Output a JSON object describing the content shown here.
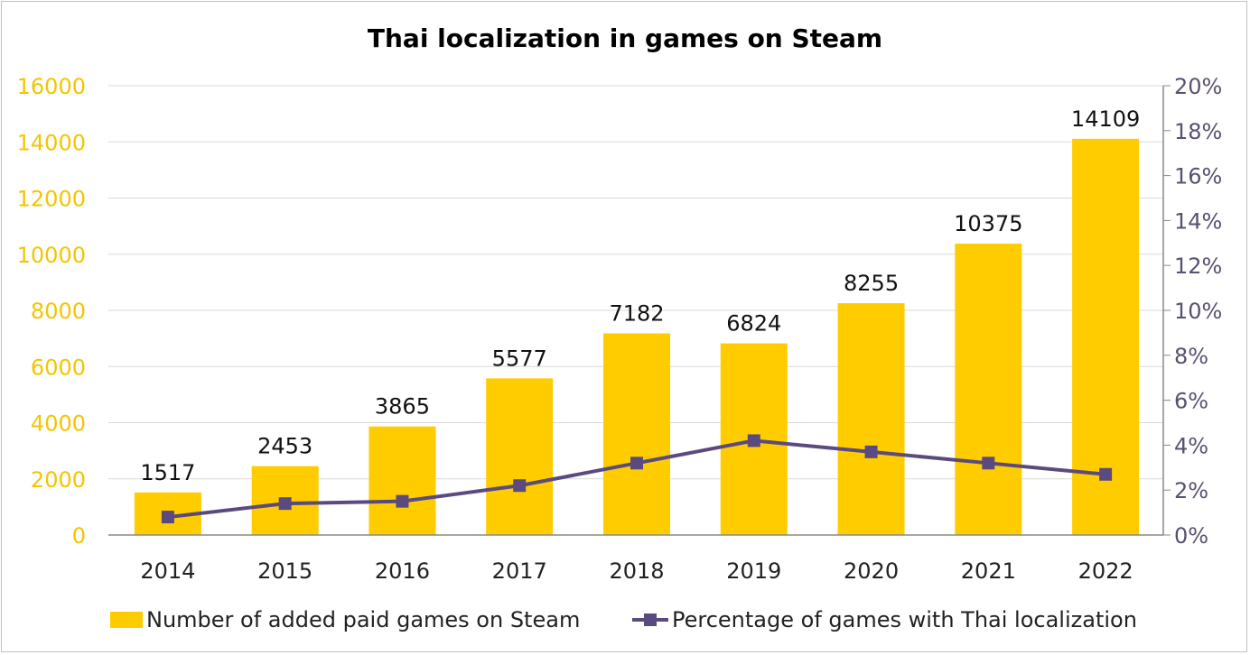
{
  "chart_data": {
    "type": "bar+line",
    "title": "Thai localization in games on Steam",
    "categories": [
      "2014",
      "2015",
      "2016",
      "2017",
      "2018",
      "2019",
      "2020",
      "2021",
      "2022"
    ],
    "series": [
      {
        "name": "Number of added paid games on Steam",
        "type": "bar",
        "axis": "left",
        "values": [
          1517,
          2453,
          3865,
          5577,
          7182,
          6824,
          8255,
          10375,
          14109
        ],
        "color": "#FFCC00"
      },
      {
        "name": "Percentage of games with Thai localization",
        "type": "line",
        "axis": "right",
        "marker": "square",
        "values": [
          0.8,
          1.4,
          1.5,
          2.2,
          3.2,
          4.2,
          3.7,
          3.2,
          2.7
        ],
        "color": "#5B4A80"
      }
    ],
    "left_axis": {
      "min": 0,
      "max": 16000,
      "step": 2000,
      "ticks": [
        "0",
        "2000",
        "4000",
        "6000",
        "8000",
        "10000",
        "12000",
        "14000",
        "16000"
      ],
      "color": "#F5C400"
    },
    "right_axis": {
      "min": 0,
      "max": 20,
      "step": 2,
      "ticks": [
        "0%",
        "2%",
        "4%",
        "6%",
        "8%",
        "10%",
        "12%",
        "14%",
        "16%",
        "18%",
        "20%"
      ],
      "color": "#5A5070"
    },
    "grid": true,
    "data_labels": true,
    "legend_position": "bottom"
  }
}
